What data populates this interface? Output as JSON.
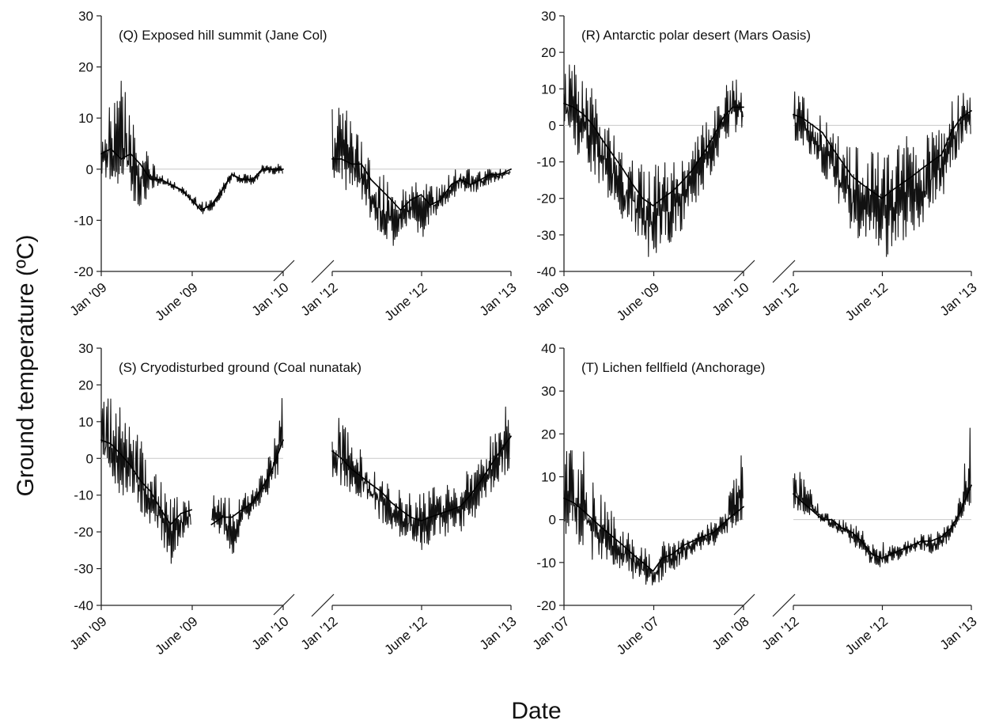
{
  "figure": {
    "ylabel": "Ground temperature (ºC)",
    "xlabel": "Date"
  },
  "chart_data": [
    {
      "type": "line",
      "title": "(Q) Exposed hill summit (Jane Col)",
      "ylim": [
        -20,
        30
      ],
      "yticks": [
        -20,
        -10,
        0,
        10,
        20,
        30
      ],
      "zero_line": true,
      "segments": [
        {
          "tick_labels": [
            "Jan '09",
            "June '09",
            "Jan '10"
          ],
          "series": [
            {
              "x": [
                "2009-01-01",
                "2009-01-20",
                "2009-02-10",
                "2009-03-01",
                "2009-03-20",
                "2009-04-10",
                "2009-05-01",
                "2009-05-20",
                "2009-06-10",
                "2009-07-01",
                "2009-07-20",
                "2009-08-10",
                "2009-09-01",
                "2009-09-20",
                "2009-10-10",
                "2009-11-01",
                "2009-11-20",
                "2009-12-10",
                "2010-01-01"
              ],
              "y": [
                3,
                4,
                2,
                3,
                1,
                -2,
                -2,
                -3,
                -4,
                -6,
                -8,
                -7,
                -4,
                -1,
                -2,
                -2,
                0,
                0,
                0
              ],
              "y_high": [
                14,
                12,
                18,
                12,
                6,
                2,
                -1,
                -2,
                -3,
                -5,
                -6,
                -6,
                -3,
                0,
                -1,
                -1,
                1,
                1,
                1
              ],
              "y_low": [
                -2,
                -3,
                -4,
                -6,
                -8,
                -4,
                -3,
                -4,
                -5,
                -7,
                -9,
                -8,
                -5,
                -2,
                -3,
                -3,
                -1,
                -1,
                -1
              ]
            }
          ]
        },
        {
          "tick_labels": [
            "Jan '12",
            "June '12",
            "Jan '13"
          ],
          "series": [
            {
              "x": [
                "2012-01-01",
                "2012-01-20",
                "2012-02-10",
                "2012-03-01",
                "2012-03-20",
                "2012-04-10",
                "2012-05-01",
                "2012-05-20",
                "2012-06-10",
                "2012-07-01",
                "2012-07-20",
                "2012-08-10",
                "2012-09-01",
                "2012-09-20",
                "2012-10-10",
                "2012-11-01",
                "2012-11-20",
                "2012-12-10",
                "2013-01-01"
              ],
              "y": [
                2,
                2,
                1,
                1,
                -2,
                -4,
                -6,
                -8,
                -6,
                -5,
                -7,
                -6,
                -3,
                -2,
                -3,
                -2,
                -1,
                -1,
                0
              ],
              "y_high": [
                12,
                14,
                10,
                6,
                2,
                0,
                -2,
                -4,
                -2,
                -2,
                -3,
                -3,
                0,
                0,
                0,
                0,
                0,
                0,
                0
              ],
              "y_low": [
                -3,
                -5,
                -6,
                -8,
                -10,
                -14,
                -16,
                -12,
                -11,
                -14,
                -10,
                -8,
                -6,
                -4,
                -5,
                -4,
                -3,
                -2,
                -1
              ]
            }
          ]
        }
      ]
    },
    {
      "type": "line",
      "title": "(R) Antarctic polar desert (Mars Oasis)",
      "ylim": [
        -40,
        30
      ],
      "yticks": [
        -40,
        -30,
        -20,
        -10,
        0,
        10,
        20,
        30
      ],
      "zero_line": true,
      "segments": [
        {
          "tick_labels": [
            "Jan '09",
            "June '09",
            "Jan '10"
          ],
          "series": [
            {
              "x": [
                "2009-01-01",
                "2009-01-20",
                "2009-02-10",
                "2009-03-01",
                "2009-03-20",
                "2009-04-10",
                "2009-05-01",
                "2009-05-20",
                "2009-06-10",
                "2009-07-01",
                "2009-07-20",
                "2009-08-10",
                "2009-09-01",
                "2009-09-20",
                "2009-10-10",
                "2009-11-01",
                "2009-11-20",
                "2009-12-10",
                "2010-01-01"
              ],
              "y": [
                6,
                5,
                3,
                0,
                -4,
                -8,
                -12,
                -16,
                -20,
                -22,
                -20,
                -18,
                -15,
                -12,
                -8,
                -3,
                2,
                5,
                5
              ],
              "y_high": [
                22,
                18,
                14,
                10,
                4,
                -2,
                -6,
                -8,
                -10,
                -12,
                -8,
                -8,
                -6,
                -4,
                0,
                4,
                10,
                14,
                12
              ],
              "y_low": [
                -6,
                -8,
                -10,
                -14,
                -18,
                -22,
                -26,
                -30,
                -34,
                -38,
                -34,
                -32,
                -28,
                -24,
                -18,
                -12,
                -6,
                -2,
                -2
              ]
            }
          ]
        },
        {
          "tick_labels": [
            "Jan '12",
            "June '12",
            "Jan '13"
          ],
          "series": [
            {
              "x": [
                "2012-01-01",
                "2012-01-20",
                "2012-02-10",
                "2012-03-01",
                "2012-03-20",
                "2012-04-10",
                "2012-05-01",
                "2012-05-20",
                "2012-06-10",
                "2012-07-01",
                "2012-07-20",
                "2012-08-10",
                "2012-09-01",
                "2012-09-20",
                "2012-10-10",
                "2012-11-01",
                "2012-11-20",
                "2012-12-10",
                "2013-01-01"
              ],
              "y": [
                3,
                2,
                0,
                -2,
                -6,
                -10,
                -14,
                -16,
                -18,
                -20,
                -18,
                -16,
                -14,
                -12,
                -10,
                -8,
                -2,
                2,
                4
              ],
              "y_high": [
                10,
                8,
                6,
                4,
                0,
                -4,
                -6,
                -4,
                -6,
                -8,
                -4,
                -4,
                -2,
                -4,
                -2,
                0,
                6,
                10,
                10
              ],
              "y_low": [
                -4,
                -6,
                -10,
                -14,
                -18,
                -24,
                -30,
                -32,
                -34,
                -38,
                -34,
                -32,
                -30,
                -28,
                -24,
                -20,
                -12,
                -6,
                -2
              ]
            }
          ]
        }
      ]
    },
    {
      "type": "line",
      "title": "(S) Cryodisturbed ground (Coal nunatak)",
      "ylim": [
        -40,
        30
      ],
      "yticks": [
        -40,
        -30,
        -20,
        -10,
        0,
        10,
        20,
        30
      ],
      "zero_line": true,
      "segments": [
        {
          "tick_labels": [
            "Jan '09",
            "June '09",
            "Jan '10"
          ],
          "series": [
            {
              "x": [
                "2009-01-01",
                "2009-01-20",
                "2009-02-10",
                "2009-03-01",
                "2009-03-20",
                "2009-04-10",
                "2009-05-01",
                "2009-05-20",
                "2009-06-10",
                "2009-07-01"
              ],
              "y": [
                5,
                4,
                1,
                -2,
                -6,
                -9,
                -14,
                -18,
                -15,
                -14
              ],
              "y_high": [
                20,
                18,
                14,
                10,
                6,
                -2,
                -6,
                -10,
                -10,
                -10
              ],
              "y_low": [
                -6,
                -8,
                -10,
                -12,
                -16,
                -20,
                -24,
                -30,
                -22,
                -20
              ]
            },
            {
              "x": [
                "2009-08-10",
                "2009-09-01",
                "2009-09-20",
                "2009-10-10",
                "2009-11-01",
                "2009-11-20",
                "2009-12-10",
                "2010-01-01"
              ],
              "y": [
                -18,
                -16,
                -16,
                -14,
                -12,
                -8,
                -3,
                5
              ],
              "y_high": [
                -10,
                -10,
                -11,
                -10,
                -8,
                -4,
                4,
                18
              ],
              "y_low": [
                -22,
                -20,
                -28,
                -18,
                -16,
                -12,
                -8,
                -2
              ]
            }
          ]
        },
        {
          "tick_labels": [
            "Jan '12",
            "June '12",
            "Jan '13"
          ],
          "series": [
            {
              "x": [
                "2012-01-01",
                "2012-01-20",
                "2012-02-10",
                "2012-03-01",
                "2012-03-20",
                "2012-04-10",
                "2012-05-01",
                "2012-05-20",
                "2012-06-10",
                "2012-07-01",
                "2012-07-20",
                "2012-08-10",
                "2012-09-01",
                "2012-09-20",
                "2012-10-10",
                "2012-11-01",
                "2012-11-20",
                "2012-12-10",
                "2013-01-01"
              ],
              "y": [
                2,
                0,
                -3,
                -5,
                -7,
                -9,
                -12,
                -14,
                -16,
                -17,
                -16,
                -15,
                -14,
                -13,
                -10,
                -6,
                -2,
                2,
                6
              ],
              "y_high": [
                14,
                10,
                6,
                2,
                -2,
                -4,
                -6,
                -8,
                -8,
                -10,
                -8,
                -6,
                -6,
                -4,
                -2,
                2,
                6,
                12,
                16
              ],
              "y_low": [
                -6,
                -8,
                -10,
                -12,
                -14,
                -18,
                -20,
                -22,
                -24,
                -25,
                -24,
                -22,
                -22,
                -20,
                -18,
                -14,
                -10,
                -6,
                -2
              ]
            }
          ]
        }
      ]
    },
    {
      "type": "line",
      "title": "(T) Lichen fellfield (Anchorage)",
      "ylim": [
        -20,
        40
      ],
      "yticks": [
        -20,
        -10,
        0,
        10,
        20,
        30,
        40
      ],
      "zero_line": true,
      "segments": [
        {
          "tick_labels": [
            "Jan '07",
            "June '07",
            "Jan '08"
          ],
          "series": [
            {
              "x": [
                "2007-01-01",
                "2007-01-20",
                "2007-02-10",
                "2007-03-01",
                "2007-03-20",
                "2007-04-10",
                "2007-05-01",
                "2007-05-20",
                "2007-06-10",
                "2007-07-01",
                "2007-07-20",
                "2007-08-10",
                "2007-09-01",
                "2007-09-20",
                "2007-10-10",
                "2007-11-01",
                "2007-11-20",
                "2007-12-10",
                "2008-01-01"
              ],
              "y": [
                5,
                4,
                2,
                0,
                -2,
                -4,
                -6,
                -8,
                -10,
                -12,
                -9,
                -8,
                -6,
                -5,
                -4,
                -3,
                -1,
                1,
                3
              ],
              "y_high": [
                20,
                18,
                16,
                10,
                6,
                2,
                -2,
                -4,
                -6,
                -8,
                -5,
                -4,
                -2,
                -2,
                -1,
                0,
                2,
                10,
                17
              ],
              "y_low": [
                -4,
                -6,
                -8,
                -10,
                -10,
                -12,
                -12,
                -14,
                -15,
                -16,
                -14,
                -12,
                -10,
                -8,
                -7,
                -6,
                -4,
                -2,
                -1
              ]
            }
          ]
        },
        {
          "tick_labels": [
            "Jan '12",
            "June '12",
            "Jan '13"
          ],
          "series": [
            {
              "x": [
                "2012-01-01",
                "2012-01-20",
                "2012-02-10",
                "2012-03-01",
                "2012-03-20",
                "2012-04-10",
                "2012-05-01",
                "2012-05-20",
                "2012-06-10",
                "2012-07-01",
                "2012-07-20",
                "2012-08-10",
                "2012-09-01",
                "2012-09-20",
                "2012-10-10",
                "2012-11-01",
                "2012-11-20",
                "2012-12-10",
                "2013-01-01"
              ],
              "y": [
                6,
                4,
                2,
                0,
                0,
                -2,
                -3,
                -5,
                -8,
                -9,
                -8,
                -7,
                -6,
                -5,
                -5,
                -4,
                -2,
                2,
                8
              ],
              "y_high": [
                14,
                10,
                6,
                2,
                1,
                0,
                -1,
                -2,
                -5,
                -5,
                -6,
                -5,
                -4,
                -3,
                -3,
                -2,
                0,
                6,
                27
              ],
              "y_low": [
                2,
                1,
                0,
                -1,
                -2,
                -4,
                -6,
                -8,
                -11,
                -12,
                -10,
                -9,
                -8,
                -7,
                -8,
                -7,
                -4,
                -1,
                1
              ]
            }
          ]
        }
      ]
    }
  ]
}
